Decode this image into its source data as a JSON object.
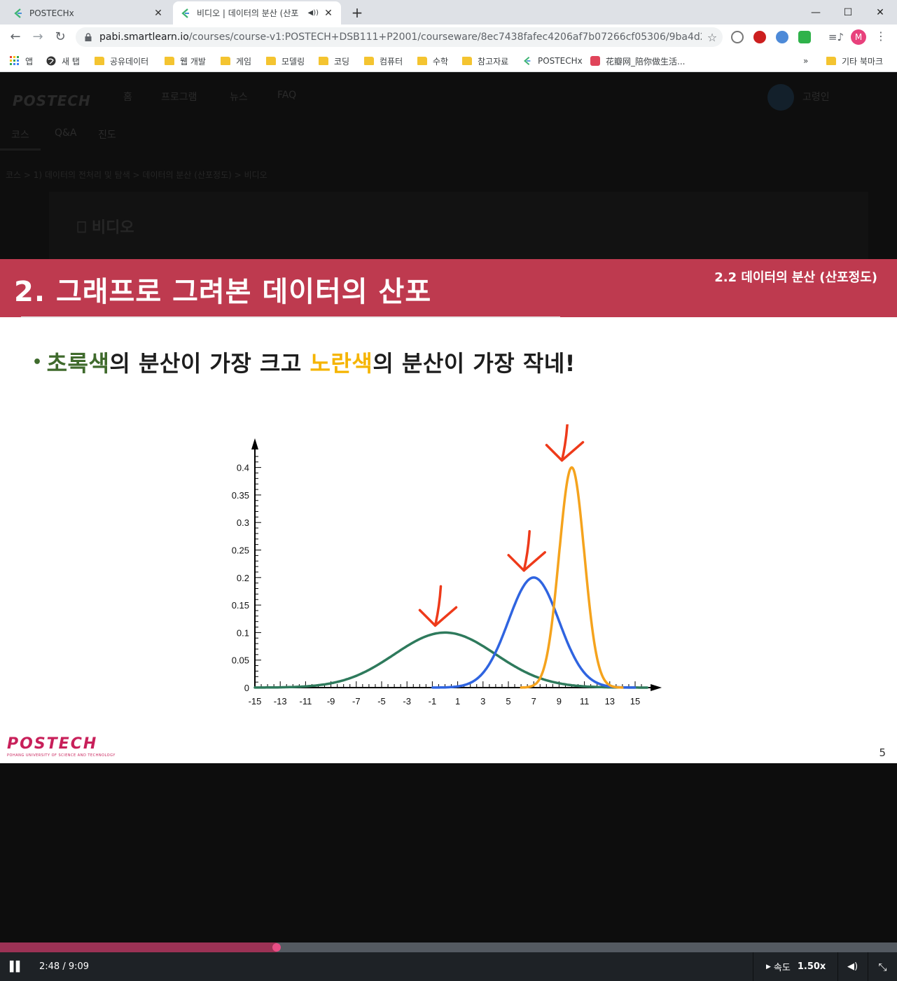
{
  "browser": {
    "tabs": [
      {
        "title": "POSTECHx",
        "active": false
      },
      {
        "title": "비디오 | 데이터의 분산 (산포",
        "active": true,
        "audio": true
      }
    ],
    "url_host": "pabi.smartlearn.io",
    "url_path": "/courses/course-v1:POSTECH+DSB111+P2001/courseware/8ec7438fafec4206af7b07266cf05306/9ba4d2e08cfe4ad0b...",
    "profile_initial": "M",
    "bookmarks": [
      "앱",
      "새 탭",
      "공유데이터",
      "웹 개발",
      "게임",
      "모델링",
      "코딩",
      "컴퓨터",
      "수학",
      "참고자료",
      "POSTECHx",
      "花瓣网_陪你做生活...",
      "기타 북마크"
    ],
    "bookmarks_overflow": "»"
  },
  "lms": {
    "logo": "POSTECH",
    "nav": [
      "홈",
      "프로그램",
      "뉴스",
      "FAQ"
    ],
    "username": "고령인",
    "course_tabs": [
      "코스",
      "Q&A",
      "진도"
    ],
    "breadcrumb": "코스 > 1) 데이터의 전처리 및 탐색 > 데이터의 분산 (산포정도) > 비디오",
    "unit_title": "비디오"
  },
  "slide": {
    "banner_title": "2. 그래프로 그려본 데이터의 산포",
    "banner_subtitle": "2.2 데이터의 분산 (산포정도)",
    "bullet": {
      "dot": "•",
      "part1": "초록색",
      "part2": "의 분산이 가장 크고 ",
      "part3": "노란색",
      "part4": "의 분산이 가장 작네!"
    },
    "logo_word": "POSTECH",
    "logo_tagline": "POHANG UNIVERSITY OF SCIENCE AND TECHNOLOGY",
    "page_number": "5"
  },
  "chart_data": {
    "type": "line",
    "title": "",
    "xlabel": "",
    "ylabel": "",
    "xlim": [
      -15,
      16
    ],
    "ylim": [
      0,
      0.42
    ],
    "x_ticks": [
      -15,
      -13,
      -11,
      -9,
      -7,
      -5,
      -3,
      -1,
      1,
      3,
      5,
      7,
      9,
      11,
      13,
      15
    ],
    "y_ticks": [
      0,
      0.05,
      0.1,
      0.15,
      0.2,
      0.25,
      0.3,
      0.35,
      0.4
    ],
    "y_tick_labels": [
      "0",
      "0.05",
      "0.1",
      "0.15",
      "0.2",
      "0.25",
      "0.3",
      "0.35",
      "0.4"
    ],
    "grid": false,
    "series": [
      {
        "color": "#2e7a5c",
        "peak_x": 0,
        "peak_y": 0.1,
        "values_x": [
          -13,
          -11,
          -9,
          -7,
          -5,
          -3,
          -1,
          0,
          1,
          3,
          5,
          7,
          9,
          11,
          13
        ],
        "values_y": [
          0.0002,
          0.0015,
          0.0058,
          0.0171,
          0.0399,
          0.0701,
          0.0947,
          0.1,
          0.0947,
          0.0701,
          0.0399,
          0.0171,
          0.0058,
          0.0015,
          0.0002
        ]
      },
      {
        "color": "#2f64e0",
        "peak_x": 7,
        "peak_y": 0.2,
        "values_x": [
          1,
          3,
          4,
          5,
          6,
          7,
          8,
          9,
          10,
          11,
          13
        ],
        "values_y": [
          0.0022,
          0.0271,
          0.0648,
          0.1213,
          0.1765,
          0.2,
          0.1765,
          0.1213,
          0.0648,
          0.0271,
          0.0022
        ]
      },
      {
        "color": "#f5a31d",
        "peak_x": 10,
        "peak_y": 0.4,
        "values_x": [
          6,
          7,
          8,
          9,
          9.5,
          10,
          10.5,
          11,
          12,
          13,
          14
        ],
        "values_y": [
          0.0001,
          0.0044,
          0.054,
          0.242,
          0.3521,
          0.4,
          0.3521,
          0.242,
          0.054,
          0.0044,
          0.0001
        ]
      }
    ],
    "annotations": [
      {
        "type": "arrow",
        "color": "#ee3a1a",
        "points_to_series": 0
      },
      {
        "type": "arrow",
        "color": "#ee3a1a",
        "points_to_series": 1
      },
      {
        "type": "arrow",
        "color": "#ee3a1a",
        "points_to_series": 2
      }
    ]
  },
  "player": {
    "progress": 0.3083,
    "time": "2:48 / 9:09",
    "speed_label": "속도",
    "speed_value": "1.50x"
  },
  "colors": {
    "banner": "#be3a4f",
    "green_text": "#3f6a2c",
    "yellow_text": "#f5b400",
    "progress_fill": "#9b3255",
    "progress_knob": "#e84e86"
  }
}
